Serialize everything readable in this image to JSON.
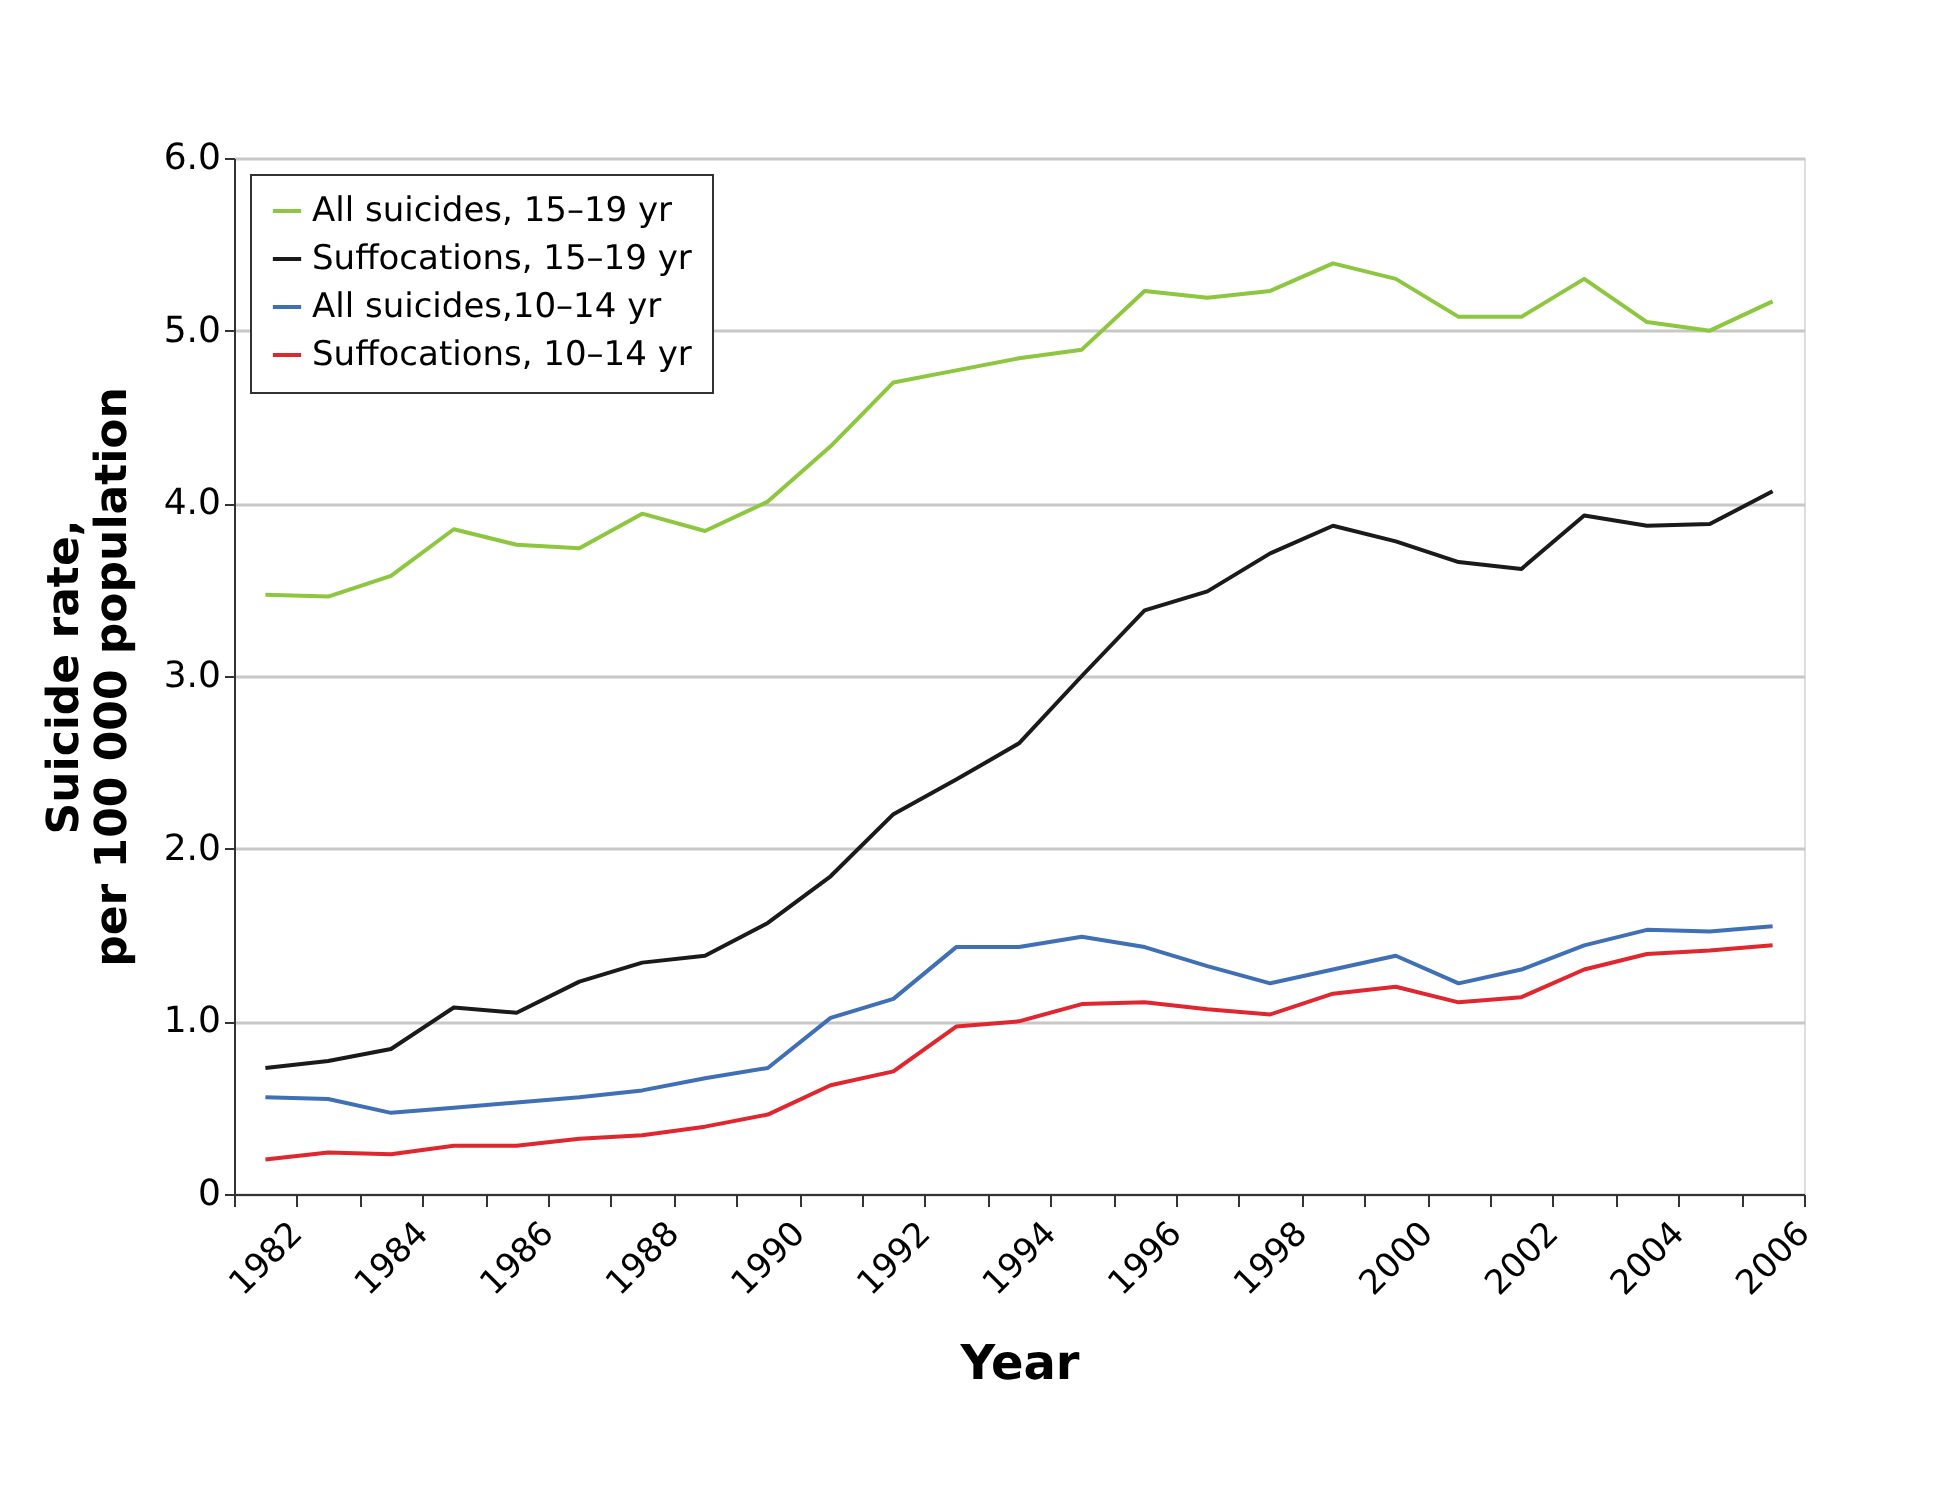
{
  "chart_data": {
    "type": "line",
    "xlabel": "Year",
    "ylabel": "Suicide rate,\nper 100 000 population",
    "categories": [
      "1982",
      null,
      "1984",
      null,
      "1986",
      null,
      "1988",
      null,
      "1990",
      null,
      "1992",
      null,
      "1994",
      null,
      "1996",
      null,
      "1998",
      null,
      "2000",
      null,
      "2002",
      null,
      "2004",
      null,
      "2006"
    ],
    "series": [
      {
        "name": "All suicides, 15–19 yr",
        "color": "#8dc63f",
        "values": [
          3.47,
          3.46,
          3.58,
          3.85,
          3.76,
          3.74,
          3.94,
          3.84,
          4.01,
          4.33,
          4.7,
          4.77,
          4.84,
          4.89,
          5.23,
          5.19,
          5.23,
          5.39,
          5.3,
          5.08,
          5.08,
          5.3,
          5.05,
          5.0,
          5.17
        ]
      },
      {
        "name": "Suffocations, 15–19 yr",
        "color": "#1a1a1a",
        "values": [
          0.73,
          0.77,
          0.84,
          1.08,
          1.05,
          1.23,
          1.34,
          1.38,
          1.57,
          1.84,
          2.2,
          2.4,
          2.61,
          3.0,
          3.38,
          3.49,
          3.71,
          3.87,
          3.78,
          3.66,
          3.62,
          3.93,
          3.87,
          3.88,
          4.07
        ]
      },
      {
        "name": "All suicides,10–14 yr",
        "color": "#3f6fb5",
        "values": [
          0.56,
          0.55,
          0.47,
          0.5,
          0.53,
          0.56,
          0.6,
          0.67,
          0.73,
          1.02,
          1.13,
          1.43,
          1.43,
          1.49,
          1.43,
          1.32,
          1.22,
          1.3,
          1.38,
          1.22,
          1.3,
          1.44,
          1.53,
          1.52,
          1.55
        ]
      },
      {
        "name": "Suffocations, 10–14 yr",
        "color": "#e0262e",
        "values": [
          0.2,
          0.24,
          0.23,
          0.28,
          0.28,
          0.32,
          0.34,
          0.39,
          0.46,
          0.63,
          0.71,
          0.97,
          1.0,
          1.1,
          1.11,
          1.07,
          1.04,
          1.16,
          1.2,
          1.11,
          1.14,
          1.3,
          1.39,
          1.41,
          1.44
        ]
      }
    ],
    "ylim": [
      0,
      6
    ],
    "yticks": [
      0,
      {
        "value": 1,
        "label": "1.0"
      },
      {
        "value": 2,
        "label": "2.0"
      },
      {
        "value": 3,
        "label": "3.0"
      },
      {
        "value": 4,
        "label": "4.0"
      },
      {
        "value": 5,
        "label": "5.0"
      },
      {
        "value": 6,
        "label": "6.0"
      }
    ],
    "grid": "y",
    "legend": "top left",
    "marker": "none",
    "line_style": "solid"
  }
}
